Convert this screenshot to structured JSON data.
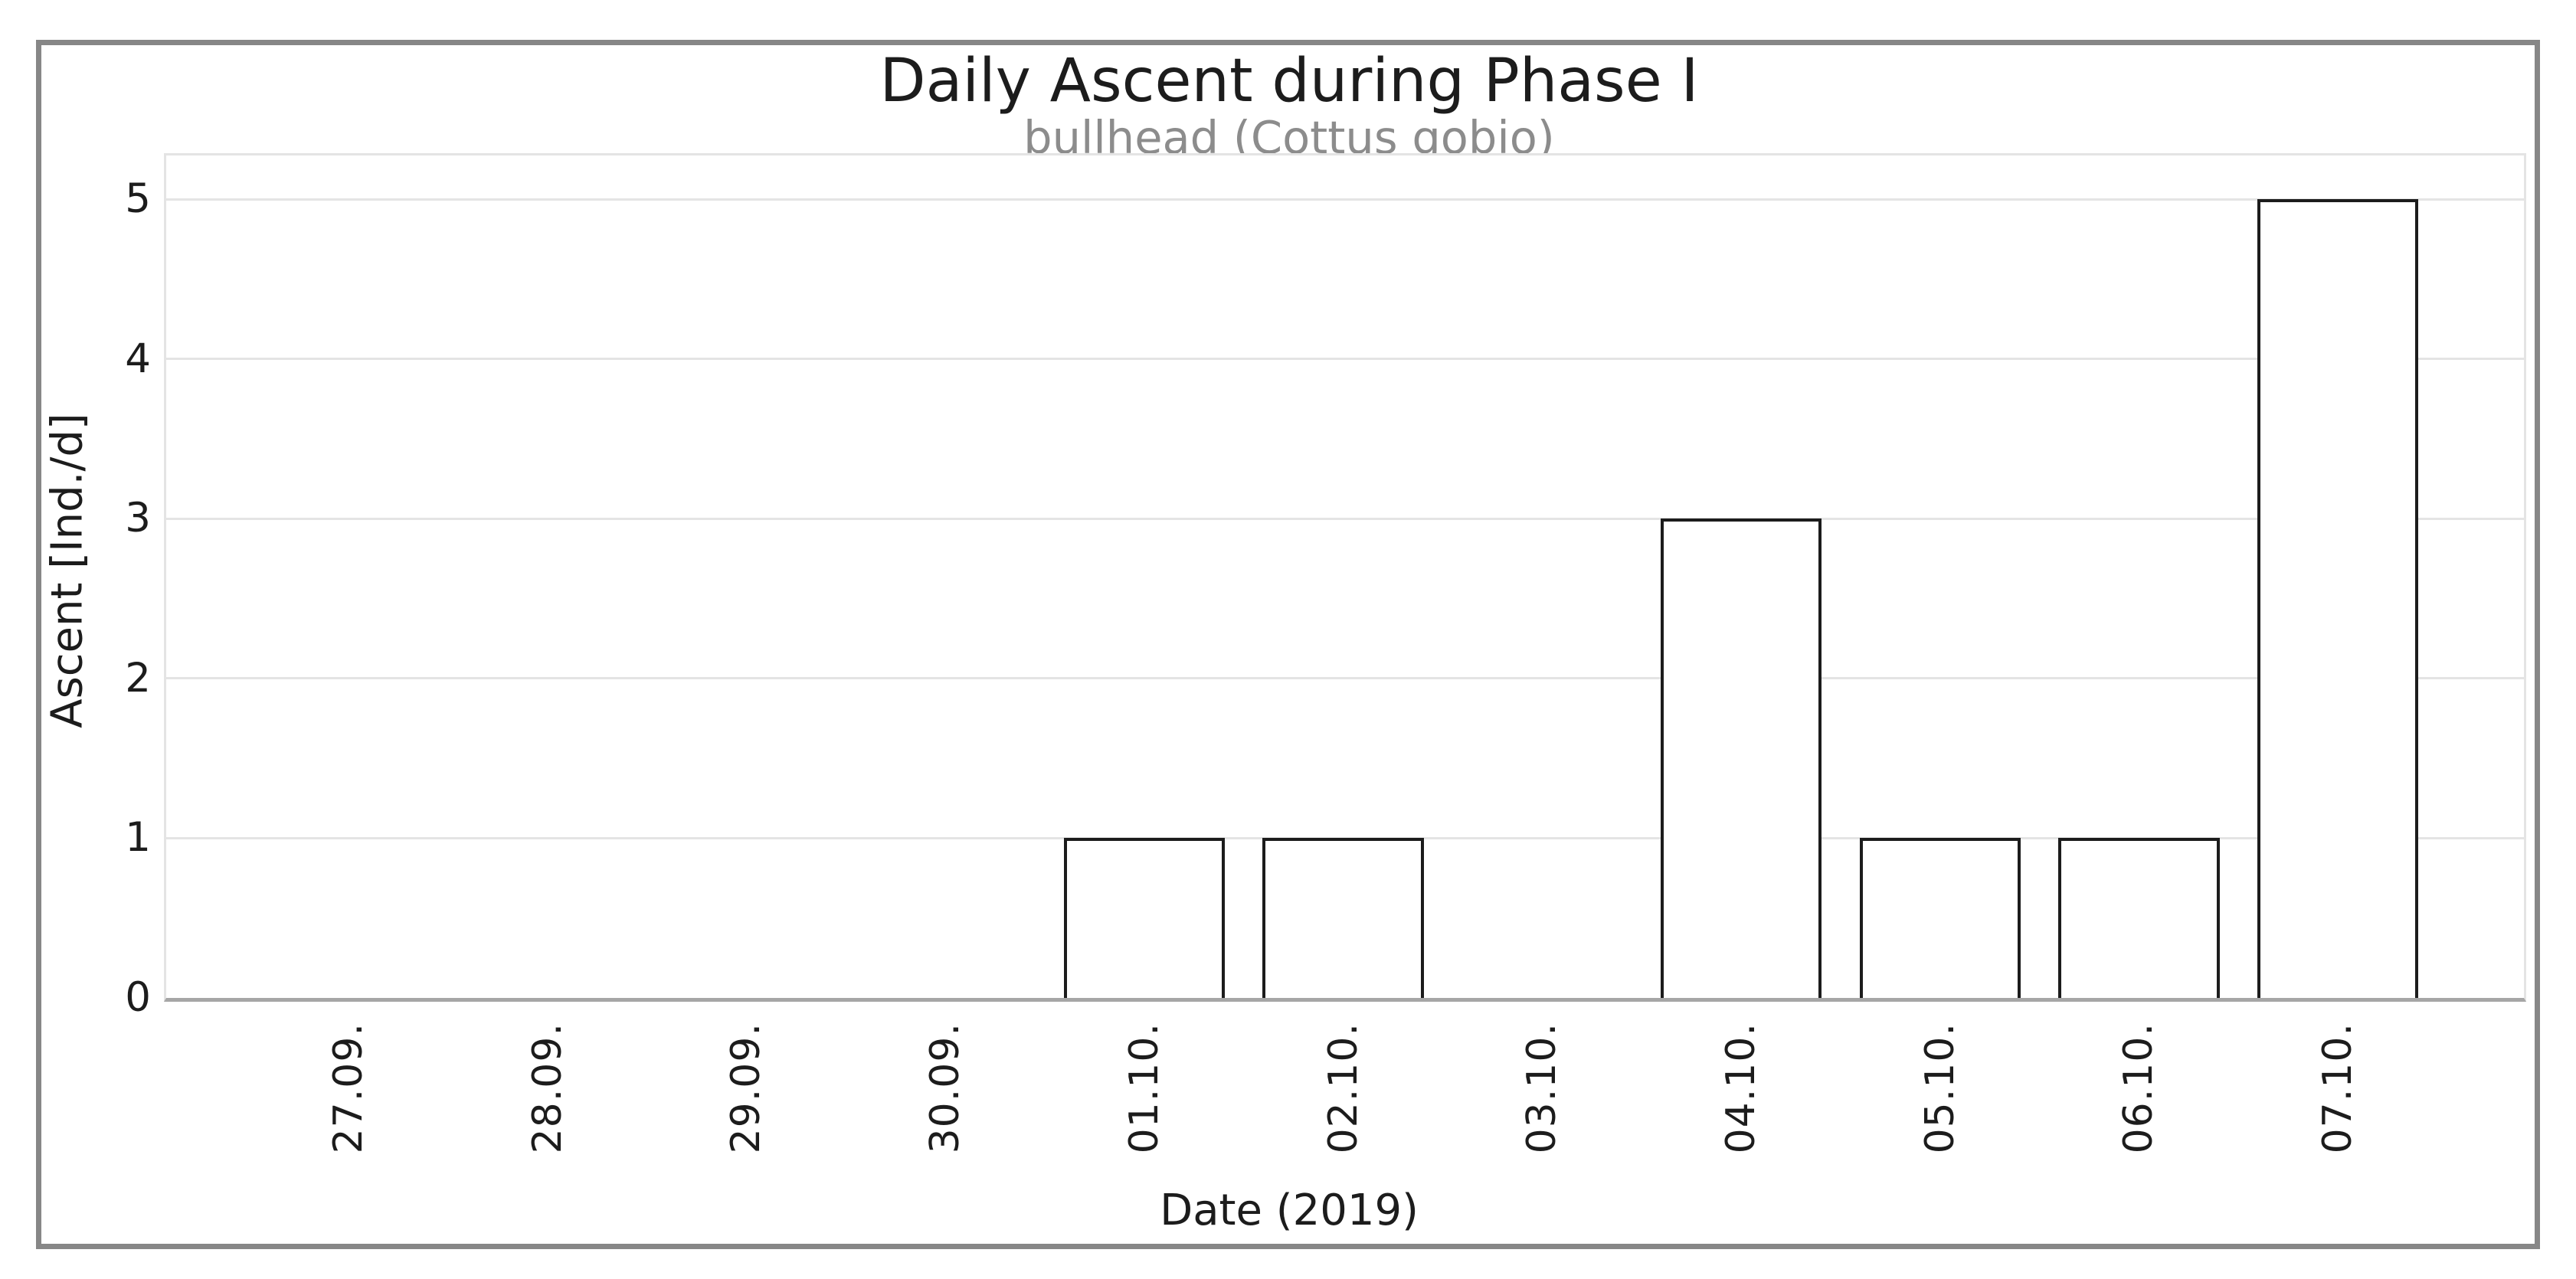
{
  "chart_data": {
    "type": "bar",
    "title": "Daily Ascent during Phase I",
    "subtitle": "bullhead (Cottus gobio)",
    "xlabel": "Date (2019)",
    "ylabel": "Ascent [Ind./d]",
    "categories": [
      "27.09.",
      "28.09.",
      "29.09.",
      "30.09.",
      "01.10.",
      "02.10.",
      "03.10.",
      "04.10.",
      "05.10.",
      "06.10.",
      "07.10."
    ],
    "values": [
      0,
      0,
      0,
      0,
      1,
      1,
      0,
      3,
      1,
      1,
      5
    ],
    "yticks": [
      0,
      1,
      2,
      3,
      4,
      5
    ],
    "ylim": [
      0,
      5.3
    ],
    "grid": "horizontal gridlines at integer values, no vertical gridlines",
    "legend": "none",
    "colors": {
      "bar_fill": "#ffffff",
      "bar_stroke": "#1c1c1c",
      "gridline": "#e4e4e4",
      "baseline_axis": "#a6a6a6",
      "figure_border": "#878787",
      "title_text": "#1c1c1c",
      "subtitle_text": "#8c8c8c",
      "tick_text": "#1c1c1c",
      "background": "#ffffff"
    }
  }
}
